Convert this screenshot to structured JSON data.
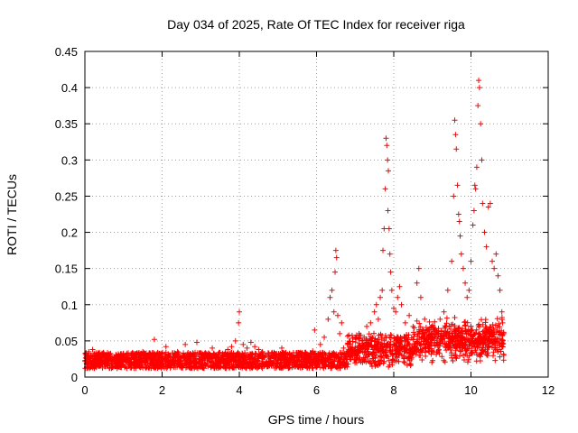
{
  "chart_data": {
    "type": "scatter",
    "title": "Day 034 of 2025, Rate Of TEC Index for receiver riga",
    "xlabel": "GPS time / hours",
    "ylabel": "ROTI / TECUs",
    "xlim": [
      0,
      12
    ],
    "ylim": [
      0,
      0.45
    ],
    "xticks": [
      0,
      2,
      4,
      6,
      8,
      10,
      12
    ],
    "yticks": [
      0,
      0.05,
      0.1,
      0.15,
      0.2,
      0.25,
      0.3,
      0.35,
      0.4,
      0.45
    ],
    "grid": true,
    "marker": "+",
    "color": "#ff0000",
    "series": [
      {
        "name": "ROTI",
        "points": [
          [
            0.05,
            0.028
          ],
          [
            0.1,
            0.035
          ],
          [
            0.15,
            0.03
          ],
          [
            0.2,
            0.038
          ],
          [
            0.25,
            0.025
          ],
          [
            0.3,
            0.03
          ],
          [
            0.35,
            0.02
          ],
          [
            0.4,
            0.027
          ],
          [
            0.5,
            0.022
          ],
          [
            0.6,
            0.03
          ],
          [
            0.7,
            0.018
          ],
          [
            0.8,
            0.024
          ],
          [
            0.9,
            0.028
          ],
          [
            1.0,
            0.032
          ],
          [
            1.1,
            0.02
          ],
          [
            1.2,
            0.026
          ],
          [
            1.3,
            0.03
          ],
          [
            1.4,
            0.022
          ],
          [
            1.5,
            0.035
          ],
          [
            1.6,
            0.028
          ],
          [
            1.7,
            0.025
          ],
          [
            1.8,
            0.052
          ],
          [
            1.9,
            0.03
          ],
          [
            2.0,
            0.024
          ],
          [
            2.1,
            0.042
          ],
          [
            2.2,
            0.03
          ],
          [
            2.3,
            0.028
          ],
          [
            2.4,
            0.035
          ],
          [
            2.5,
            0.022
          ],
          [
            2.6,
            0.045
          ],
          [
            2.7,
            0.03
          ],
          [
            2.8,
            0.025
          ],
          [
            2.9,
            0.048
          ],
          [
            3.0,
            0.028
          ],
          [
            3.1,
            0.032
          ],
          [
            3.2,
            0.026
          ],
          [
            3.3,
            0.04
          ],
          [
            3.4,
            0.03
          ],
          [
            3.5,
            0.034
          ],
          [
            3.6,
            0.028
          ],
          [
            3.7,
            0.038
          ],
          [
            3.8,
            0.042
          ],
          [
            3.9,
            0.05
          ],
          [
            4.0,
            0.09
          ],
          [
            3.98,
            0.075
          ],
          [
            4.1,
            0.045
          ],
          [
            4.2,
            0.04
          ],
          [
            4.3,
            0.048
          ],
          [
            4.4,
            0.042
          ],
          [
            4.5,
            0.038
          ],
          [
            4.6,
            0.035
          ],
          [
            4.7,
            0.03
          ],
          [
            4.8,
            0.028
          ],
          [
            4.9,
            0.034
          ],
          [
            5.0,
            0.025
          ],
          [
            5.1,
            0.04
          ],
          [
            5.2,
            0.022
          ],
          [
            5.3,
            0.03
          ],
          [
            5.4,
            0.028
          ],
          [
            5.5,
            0.026
          ],
          [
            5.6,
            0.03
          ],
          [
            5.7,
            0.034
          ],
          [
            5.8,
            0.028
          ],
          [
            5.9,
            0.036
          ],
          [
            5.95,
            0.065
          ],
          [
            6.0,
            0.03
          ],
          [
            6.1,
            0.045
          ],
          [
            6.2,
            0.055
          ],
          [
            6.3,
            0.08
          ],
          [
            6.35,
            0.11
          ],
          [
            6.4,
            0.12
          ],
          [
            6.45,
            0.09
          ],
          [
            6.5,
            0.175
          ],
          [
            6.52,
            0.165
          ],
          [
            6.48,
            0.145
          ],
          [
            6.55,
            0.085
          ],
          [
            6.6,
            0.06
          ],
          [
            6.65,
            0.075
          ],
          [
            6.7,
            0.04
          ],
          [
            6.8,
            0.045
          ],
          [
            6.9,
            0.035
          ],
          [
            7.0,
            0.055
          ],
          [
            7.1,
            0.06
          ],
          [
            7.2,
            0.05
          ],
          [
            7.3,
            0.07
          ],
          [
            7.4,
            0.075
          ],
          [
            7.5,
            0.09
          ],
          [
            7.55,
            0.1
          ],
          [
            7.6,
            0.08
          ],
          [
            7.65,
            0.11
          ],
          [
            7.7,
            0.12
          ],
          [
            7.72,
            0.175
          ],
          [
            7.75,
            0.205
          ],
          [
            7.78,
            0.26
          ],
          [
            7.8,
            0.33
          ],
          [
            7.82,
            0.32
          ],
          [
            7.84,
            0.3
          ],
          [
            7.86,
            0.285
          ],
          [
            7.85,
            0.23
          ],
          [
            7.88,
            0.205
          ],
          [
            7.9,
            0.17
          ],
          [
            7.92,
            0.145
          ],
          [
            7.95,
            0.12
          ],
          [
            8.0,
            0.095
          ],
          [
            8.05,
            0.09
          ],
          [
            8.1,
            0.11
          ],
          [
            8.15,
            0.125
          ],
          [
            8.2,
            0.1
          ],
          [
            8.3,
            0.075
          ],
          [
            8.4,
            0.085
          ],
          [
            8.5,
            0.07
          ],
          [
            8.6,
            0.13
          ],
          [
            8.65,
            0.15
          ],
          [
            8.7,
            0.11
          ],
          [
            8.8,
            0.08
          ],
          [
            8.9,
            0.065
          ],
          [
            9.0,
            0.07
          ],
          [
            9.1,
            0.06
          ],
          [
            9.2,
            0.08
          ],
          [
            9.3,
            0.09
          ],
          [
            9.4,
            0.12
          ],
          [
            9.5,
            0.16
          ],
          [
            9.55,
            0.25
          ],
          [
            9.58,
            0.355
          ],
          [
            9.6,
            0.335
          ],
          [
            9.62,
            0.315
          ],
          [
            9.65,
            0.265
          ],
          [
            9.68,
            0.225
          ],
          [
            9.7,
            0.215
          ],
          [
            9.72,
            0.195
          ],
          [
            9.75,
            0.17
          ],
          [
            9.8,
            0.15
          ],
          [
            9.85,
            0.13
          ],
          [
            9.9,
            0.11
          ],
          [
            9.95,
            0.12
          ],
          [
            10.0,
            0.16
          ],
          [
            10.05,
            0.21
          ],
          [
            10.08,
            0.23
          ],
          [
            10.1,
            0.265
          ],
          [
            10.12,
            0.26
          ],
          [
            10.15,
            0.29
          ],
          [
            10.18,
            0.375
          ],
          [
            10.2,
            0.41
          ],
          [
            10.22,
            0.4
          ],
          [
            10.25,
            0.35
          ],
          [
            10.28,
            0.3
          ],
          [
            10.3,
            0.24
          ],
          [
            10.35,
            0.2
          ],
          [
            10.4,
            0.18
          ],
          [
            10.45,
            0.235
          ],
          [
            10.5,
            0.24
          ],
          [
            10.55,
            0.16
          ],
          [
            10.6,
            0.15
          ],
          [
            10.65,
            0.17
          ],
          [
            10.7,
            0.14
          ],
          [
            10.75,
            0.12
          ],
          [
            10.8,
            0.09
          ],
          [
            10.82,
            0.075
          ],
          [
            10.85,
            0.06
          ],
          [
            10.85,
            0.03
          ]
        ]
      }
    ]
  }
}
